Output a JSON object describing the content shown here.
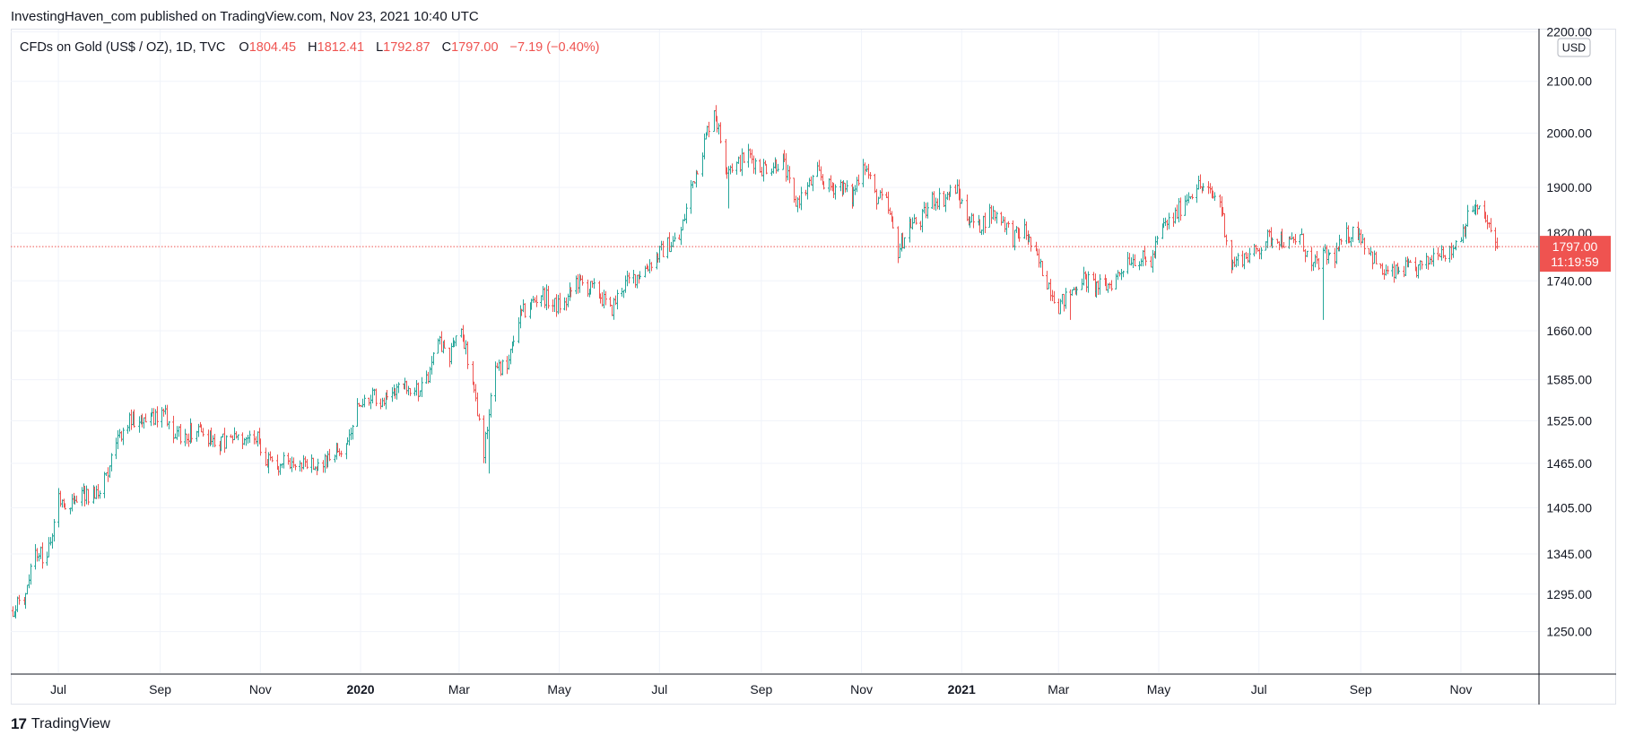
{
  "header": {
    "publisher_line": "InvestingHaven_com published on TradingView.com, Nov 23, 2021 10:40 UTC"
  },
  "legend": {
    "symbol": "CFDs on Gold (US$ / OZ), 1D, TVC",
    "open_label": "O",
    "open": "1804.45",
    "high_label": "H",
    "high": "1812.41",
    "low_label": "L",
    "low": "1792.87",
    "close_label": "C",
    "close": "1797.00",
    "change": "−7.19 (−0.40%)"
  },
  "price_scale": {
    "currency": "USD"
  },
  "last_price": {
    "value": "1797.00",
    "countdown": "11:19:59"
  },
  "footer": {
    "logo_mark": "17",
    "brand": "TradingView"
  },
  "colors": {
    "up": "#26a69a",
    "down": "#ef5350",
    "grid": "#f0f3fa",
    "axis_text": "#131722"
  },
  "chart_data": {
    "type": "ohlc",
    "scale": "log",
    "y_ticks": [
      2200.0,
      2100.0,
      2000.0,
      1900.0,
      1820.0,
      1740.0,
      1660.0,
      1585.0,
      1525.0,
      1465.0,
      1405.0,
      1345.0,
      1295.0,
      1250.0
    ],
    "y_tick_labels": [
      "2200.00",
      "2100.00",
      "2000.00",
      "1900.00",
      "1820.00",
      "1740.00",
      "1660.00",
      "1585.00",
      "1525.00",
      "1465.00",
      "1405.00",
      "1345.00",
      "1295.00",
      "1250.00"
    ],
    "x_ticks": [
      {
        "date": "2019-07-01",
        "label": "Jul",
        "bold": false
      },
      {
        "date": "2019-09-01",
        "label": "Sep",
        "bold": false
      },
      {
        "date": "2019-11-01",
        "label": "Nov",
        "bold": false
      },
      {
        "date": "2020-01-01",
        "label": "2020",
        "bold": true
      },
      {
        "date": "2020-03-01",
        "label": "Mar",
        "bold": false
      },
      {
        "date": "2020-05-01",
        "label": "May",
        "bold": false
      },
      {
        "date": "2020-07-01",
        "label": "Jul",
        "bold": false
      },
      {
        "date": "2020-09-01",
        "label": "Sep",
        "bold": false
      },
      {
        "date": "2020-11-01",
        "label": "Nov",
        "bold": false
      },
      {
        "date": "2021-01-01",
        "label": "2021",
        "bold": true
      },
      {
        "date": "2021-03-01",
        "label": "Mar",
        "bold": false
      },
      {
        "date": "2021-05-01",
        "label": "May",
        "bold": false
      },
      {
        "date": "2021-07-01",
        "label": "Jul",
        "bold": false
      },
      {
        "date": "2021-09-01",
        "label": "Sep",
        "bold": false
      },
      {
        "date": "2021-11-01",
        "label": "Nov",
        "bold": false
      }
    ],
    "x_range": [
      "2019-06-02",
      "2021-12-18"
    ],
    "last_date": "2021-11-23",
    "close_path": [
      [
        "2019-06-03",
        1275
      ],
      [
        "2019-06-10",
        1290
      ],
      [
        "2019-06-17",
        1345
      ],
      [
        "2019-06-24",
        1340
      ],
      [
        "2019-07-01",
        1415
      ],
      [
        "2019-07-08",
        1410
      ],
      [
        "2019-07-15",
        1425
      ],
      [
        "2019-07-22",
        1420
      ],
      [
        "2019-07-29",
        1440
      ],
      [
        "2019-08-05",
        1500
      ],
      [
        "2019-08-12",
        1520
      ],
      [
        "2019-08-19",
        1530
      ],
      [
        "2019-08-26",
        1525
      ],
      [
        "2019-09-02",
        1540
      ],
      [
        "2019-09-09",
        1505
      ],
      [
        "2019-09-16",
        1505
      ],
      [
        "2019-09-23",
        1515
      ],
      [
        "2019-09-30",
        1500
      ],
      [
        "2019-10-07",
        1495
      ],
      [
        "2019-10-14",
        1500
      ],
      [
        "2019-10-21",
        1495
      ],
      [
        "2019-10-28",
        1510
      ],
      [
        "2019-11-04",
        1470
      ],
      [
        "2019-11-11",
        1465
      ],
      [
        "2019-11-18",
        1465
      ],
      [
        "2019-11-25",
        1462
      ],
      [
        "2019-12-02",
        1465
      ],
      [
        "2019-12-09",
        1470
      ],
      [
        "2019-12-16",
        1478
      ],
      [
        "2019-12-23",
        1495
      ],
      [
        "2019-12-30",
        1550
      ],
      [
        "2020-01-06",
        1560
      ],
      [
        "2020-01-13",
        1555
      ],
      [
        "2020-01-20",
        1570
      ],
      [
        "2020-01-27",
        1575
      ],
      [
        "2020-02-03",
        1565
      ],
      [
        "2020-02-10",
        1580
      ],
      [
        "2020-02-17",
        1640
      ],
      [
        "2020-02-24",
        1620
      ],
      [
        "2020-03-02",
        1670
      ],
      [
        "2020-03-09",
        1580
      ],
      [
        "2020-03-16",
        1480
      ],
      [
        "2020-03-23",
        1610
      ],
      [
        "2020-03-30",
        1600
      ],
      [
        "2020-04-06",
        1680
      ],
      [
        "2020-04-13",
        1700
      ],
      [
        "2020-04-20",
        1720
      ],
      [
        "2020-04-27",
        1700
      ],
      [
        "2020-05-04",
        1700
      ],
      [
        "2020-05-11",
        1740
      ],
      [
        "2020-05-18",
        1730
      ],
      [
        "2020-05-25",
        1720
      ],
      [
        "2020-06-01",
        1690
      ],
      [
        "2020-06-08",
        1730
      ],
      [
        "2020-06-15",
        1745
      ],
      [
        "2020-06-22",
        1760
      ],
      [
        "2020-06-29",
        1780
      ],
      [
        "2020-07-06",
        1800
      ],
      [
        "2020-07-13",
        1810
      ],
      [
        "2020-07-20",
        1900
      ],
      [
        "2020-07-27",
        1970
      ],
      [
        "2020-08-03",
        2050
      ],
      [
        "2020-08-10",
        1940
      ],
      [
        "2020-08-17",
        1940
      ],
      [
        "2020-08-24",
        1960
      ],
      [
        "2020-08-31",
        1935
      ],
      [
        "2020-09-07",
        1940
      ],
      [
        "2020-09-14",
        1950
      ],
      [
        "2020-09-21",
        1870
      ],
      [
        "2020-09-28",
        1895
      ],
      [
        "2020-10-05",
        1925
      ],
      [
        "2020-10-12",
        1900
      ],
      [
        "2020-10-19",
        1905
      ],
      [
        "2020-10-26",
        1880
      ],
      [
        "2020-11-02",
        1950
      ],
      [
        "2020-11-09",
        1885
      ],
      [
        "2020-11-16",
        1870
      ],
      [
        "2020-11-23",
        1790
      ],
      [
        "2020-11-30",
        1835
      ],
      [
        "2020-12-07",
        1840
      ],
      [
        "2020-12-14",
        1880
      ],
      [
        "2020-12-21",
        1880
      ],
      [
        "2020-12-28",
        1900
      ],
      [
        "2021-01-04",
        1850
      ],
      [
        "2021-01-11",
        1830
      ],
      [
        "2021-01-18",
        1855
      ],
      [
        "2021-01-25",
        1848
      ],
      [
        "2021-02-01",
        1812
      ],
      [
        "2021-02-08",
        1825
      ],
      [
        "2021-02-15",
        1780
      ],
      [
        "2021-02-22",
        1740
      ],
      [
        "2021-03-01",
        1700
      ],
      [
        "2021-03-08",
        1720
      ],
      [
        "2021-03-15",
        1745
      ],
      [
        "2021-03-22",
        1733
      ],
      [
        "2021-03-29",
        1728
      ],
      [
        "2021-04-05",
        1745
      ],
      [
        "2021-04-12",
        1778
      ],
      [
        "2021-04-19",
        1777
      ],
      [
        "2021-04-26",
        1770
      ],
      [
        "2021-05-03",
        1830
      ],
      [
        "2021-05-10",
        1845
      ],
      [
        "2021-05-17",
        1880
      ],
      [
        "2021-05-24",
        1905
      ],
      [
        "2021-05-31",
        1890
      ],
      [
        "2021-06-07",
        1877
      ],
      [
        "2021-06-14",
        1765
      ],
      [
        "2021-06-21",
        1780
      ],
      [
        "2021-06-28",
        1785
      ],
      [
        "2021-07-05",
        1810
      ],
      [
        "2021-07-12",
        1815
      ],
      [
        "2021-07-19",
        1800
      ],
      [
        "2021-07-26",
        1815
      ],
      [
        "2021-08-02",
        1760
      ],
      [
        "2021-08-09",
        1780
      ],
      [
        "2021-08-16",
        1782
      ],
      [
        "2021-08-23",
        1815
      ],
      [
        "2021-08-30",
        1825
      ],
      [
        "2021-09-06",
        1790
      ],
      [
        "2021-09-13",
        1755
      ],
      [
        "2021-09-20",
        1750
      ],
      [
        "2021-09-27",
        1760
      ],
      [
        "2021-10-04",
        1757
      ],
      [
        "2021-10-11",
        1768
      ],
      [
        "2021-10-18",
        1795
      ],
      [
        "2021-10-25",
        1785
      ],
      [
        "2021-11-01",
        1820
      ],
      [
        "2021-11-08",
        1865
      ],
      [
        "2021-11-15",
        1850
      ],
      [
        "2021-11-22",
        1797
      ]
    ],
    "spikes": [
      {
        "date": "2020-03-19",
        "low": 1451
      },
      {
        "date": "2020-08-12",
        "low": 1863
      },
      {
        "date": "2021-03-08",
        "low": 1677
      },
      {
        "date": "2021-08-09",
        "low": 1677
      }
    ]
  }
}
